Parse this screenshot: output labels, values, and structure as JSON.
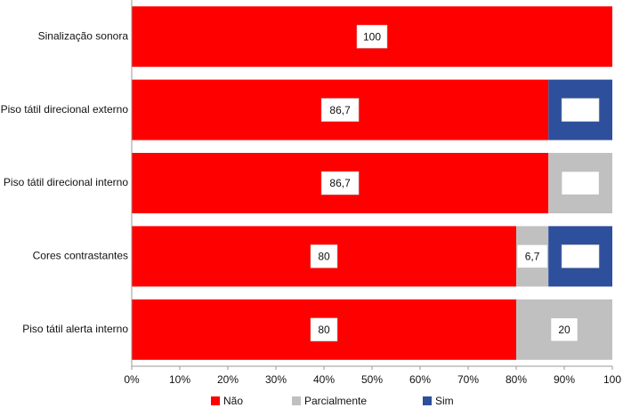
{
  "chart_data": {
    "type": "stacked-bar",
    "categories": [
      "Sinalização sonora",
      "Piso tátil direcional externo",
      "Piso tátil direcional interno",
      "Cores contrastantes",
      "Piso tátil alerta interno"
    ],
    "series": [
      {
        "name": "Não",
        "color": "#ff0000",
        "values": [
          100,
          86.7,
          86.7,
          80,
          80
        ],
        "value_labels": [
          "100",
          "86,7",
          "86,7",
          "80",
          "80"
        ]
      },
      {
        "name": "Parcialmente",
        "color": "#c0c0c0",
        "values": [
          0,
          0,
          13.3,
          6.7,
          20
        ],
        "value_labels": [
          null,
          null,
          null,
          "6,7",
          "20"
        ]
      },
      {
        "name": "Sim",
        "color": "#2e4f9b",
        "values": [
          0,
          13.3,
          0,
          13.3,
          0
        ],
        "value_labels": [
          null,
          null,
          null,
          null,
          null
        ]
      }
    ],
    "xlim": [
      0,
      100
    ],
    "xticks": [
      {
        "value": 0,
        "label": "0%"
      },
      {
        "value": 10,
        "label": "10%"
      },
      {
        "value": 20,
        "label": "20%"
      },
      {
        "value": 30,
        "label": "30%"
      },
      {
        "value": 40,
        "label": "40%"
      },
      {
        "value": 50,
        "label": "50%"
      },
      {
        "value": 60,
        "label": "60%"
      },
      {
        "value": 70,
        "label": "70%"
      },
      {
        "value": 80,
        "label": "80%"
      },
      {
        "value": 90,
        "label": "90%"
      },
      100
    ]
  }
}
